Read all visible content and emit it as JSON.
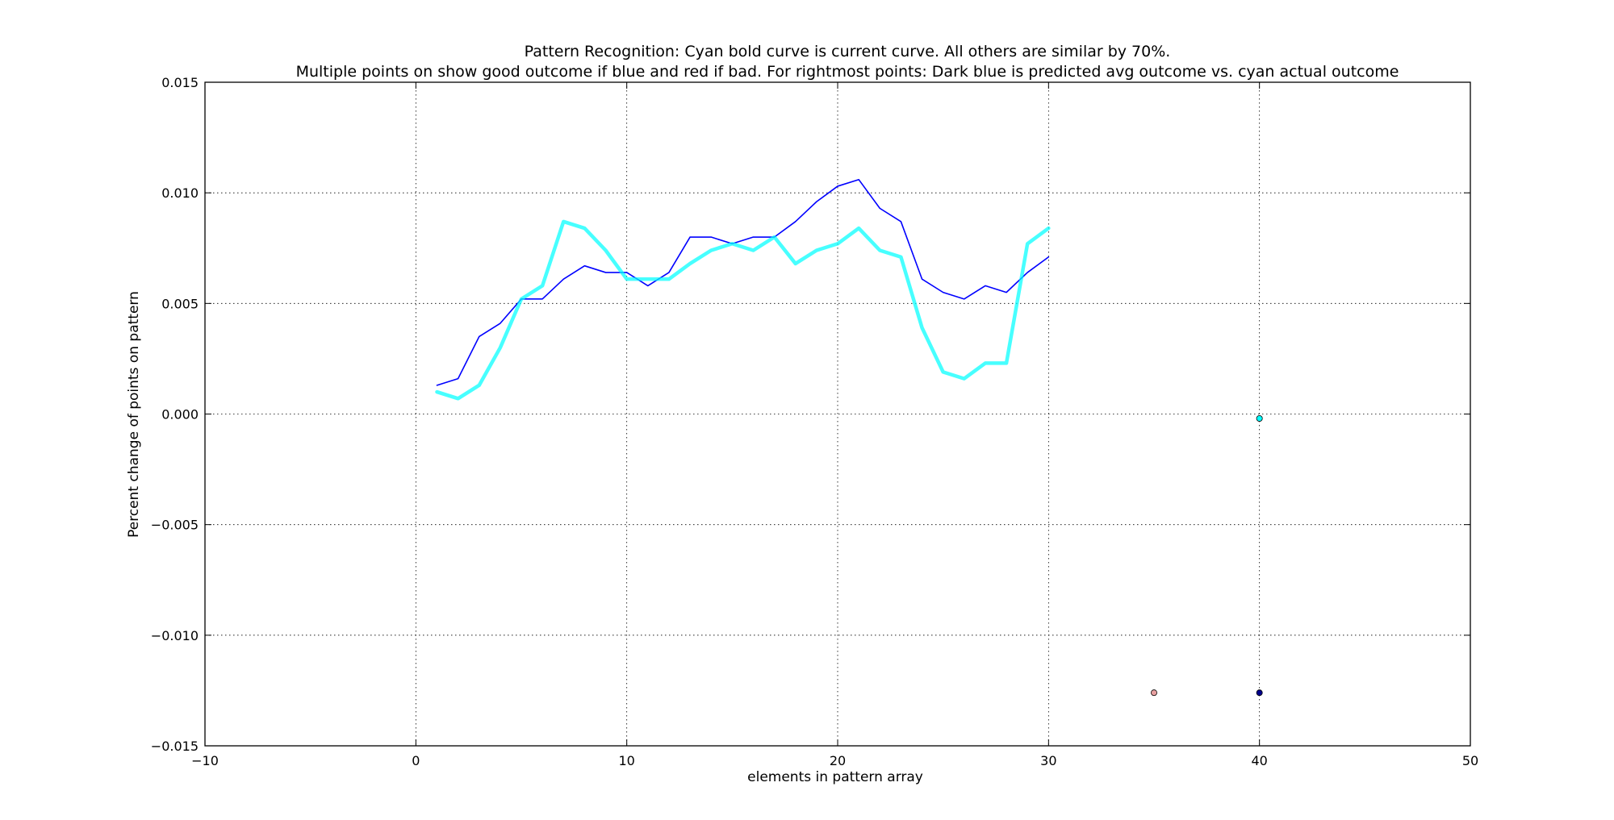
{
  "chart_data": {
    "type": "line",
    "title": "Pattern Recognition: Cyan bold curve is current curve. All others are similar by 70%.",
    "subtitle": "Multiple points on show good outcome if blue and red if bad. For rightmost points: Dark blue is predicted avg outcome vs. cyan actual outcome",
    "xlabel": "elements in pattern array",
    "ylabel": "Percent change of points on pattern",
    "xlim": [
      -10,
      50
    ],
    "ylim": [
      -0.015,
      0.015
    ],
    "xticks": [
      "−10",
      "0",
      "10",
      "20",
      "30",
      "40",
      "50"
    ],
    "yticks": [
      "−0.015",
      "−0.010",
      "−0.005",
      "0.000",
      "0.005",
      "0.010",
      "0.015"
    ],
    "grid": true,
    "x": [
      1,
      2,
      3,
      4,
      5,
      6,
      7,
      8,
      9,
      10,
      11,
      12,
      13,
      14,
      15,
      16,
      17,
      18,
      19,
      20,
      21,
      22,
      23,
      24,
      25,
      26,
      27,
      28,
      29,
      30
    ],
    "series": [
      {
        "style": "thin",
        "color": "#0000ff",
        "values": [
          0.0013,
          0.0016,
          0.0035,
          0.0041,
          0.0052,
          0.0052,
          0.0061,
          0.0067,
          0.0064,
          0.0064,
          0.0058,
          0.0064,
          0.008,
          0.008,
          0.0077,
          0.008,
          0.008,
          0.0087,
          0.0096,
          0.0103,
          0.0106,
          0.0093,
          0.0087,
          0.0061,
          0.0055,
          0.0052,
          0.0058,
          0.0055,
          0.0064,
          0.0071
        ]
      },
      {
        "style": "bold",
        "color": "#00ffff",
        "values": [
          0.001,
          0.0007,
          0.0013,
          0.003,
          0.0052,
          0.0058,
          0.0087,
          0.0084,
          0.0074,
          0.0061,
          0.0061,
          0.0061,
          0.0068,
          0.0074,
          0.0077,
          0.0074,
          0.008,
          0.0068,
          0.0074,
          0.0077,
          0.0084,
          0.0074,
          0.0071,
          0.0039,
          0.0019,
          0.0016,
          0.0023,
          0.0023,
          0.0077,
          0.0084
        ]
      }
    ],
    "points": [
      {
        "x": 35,
        "y": -0.0126,
        "color": "#e8a0a0"
      },
      {
        "x": 40,
        "y": -0.0126,
        "color": "#00008b"
      },
      {
        "x": 40,
        "y": -0.0002,
        "color": "#00ffff"
      }
    ]
  }
}
